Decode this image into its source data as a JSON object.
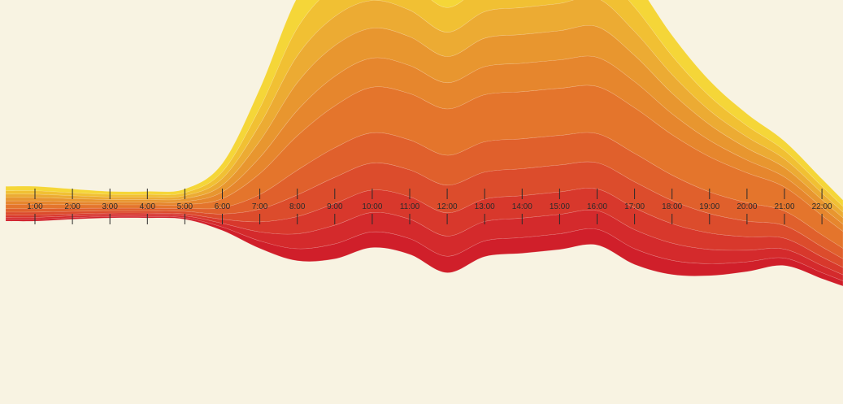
{
  "chart_data": {
    "type": "area",
    "layout": "streamgraph",
    "background": "#f8f3e2",
    "x": [
      "1:00",
      "2:00",
      "3:00",
      "4:00",
      "5:00",
      "6:00",
      "7:00",
      "8:00",
      "9:00",
      "10:00",
      "11:00",
      "12:00",
      "13:00",
      "14:00",
      "15:00",
      "16:00",
      "17:00",
      "18:00",
      "19:00",
      "20:00",
      "21:00",
      "22:00"
    ],
    "offset_above_center": [
      0.02,
      0.02,
      0.02,
      0.02,
      0.02,
      0.11,
      0.62,
      1.45,
      2.15,
      2.6,
      2.42,
      2.01,
      2.38,
      2.46,
      2.55,
      2.6,
      2.05,
      1.4,
      0.88,
      0.52,
      0.22,
      -0.48
    ],
    "center_layer_index": 5,
    "series": [
      {
        "values": [
          0.12,
          0.1,
          0.08,
          0.08,
          0.1,
          0.22,
          0.52,
          0.82,
          0.92,
          0.85,
          0.8,
          0.72,
          0.8,
          0.8,
          0.82,
          0.88,
          0.72,
          0.55,
          0.42,
          0.32,
          0.25,
          0.2
        ],
        "color": "#f5d638"
      },
      {
        "values": [
          0.09,
          0.08,
          0.07,
          0.07,
          0.08,
          0.18,
          0.44,
          0.74,
          0.8,
          0.75,
          0.72,
          0.66,
          0.72,
          0.72,
          0.74,
          0.76,
          0.65,
          0.5,
          0.38,
          0.3,
          0.23,
          0.18
        ],
        "color": "#f1c033"
      },
      {
        "values": [
          0.09,
          0.08,
          0.07,
          0.07,
          0.08,
          0.18,
          0.44,
          0.72,
          0.78,
          0.74,
          0.71,
          0.65,
          0.71,
          0.72,
          0.73,
          0.76,
          0.64,
          0.5,
          0.38,
          0.3,
          0.23,
          0.18
        ],
        "color": "#ecab33"
      },
      {
        "values": [
          0.09,
          0.08,
          0.07,
          0.07,
          0.08,
          0.18,
          0.44,
          0.74,
          0.82,
          0.8,
          0.77,
          0.7,
          0.76,
          0.77,
          0.78,
          0.82,
          0.7,
          0.55,
          0.42,
          0.32,
          0.25,
          0.2
        ],
        "color": "#e8962f"
      },
      {
        "values": [
          0.09,
          0.08,
          0.07,
          0.07,
          0.08,
          0.18,
          0.43,
          0.68,
          0.79,
          0.78,
          0.75,
          0.7,
          0.75,
          0.76,
          0.76,
          0.78,
          0.7,
          0.56,
          0.44,
          0.34,
          0.27,
          0.22
        ],
        "color": "#e6862d"
      },
      {
        "values": [
          0.12,
          0.1,
          0.09,
          0.09,
          0.1,
          0.24,
          0.56,
          0.92,
          1.12,
          1.22,
          1.24,
          1.24,
          1.26,
          1.26,
          1.26,
          1.26,
          1.22,
          1.08,
          0.94,
          0.8,
          0.64,
          0.52
        ],
        "color": "#e4752c"
      },
      {
        "values": [
          0.09,
          0.08,
          0.07,
          0.07,
          0.08,
          0.17,
          0.39,
          0.66,
          0.79,
          0.81,
          0.8,
          0.8,
          0.81,
          0.8,
          0.79,
          0.78,
          0.76,
          0.68,
          0.58,
          0.49,
          0.39,
          0.32
        ],
        "color": "#e0602c"
      },
      {
        "values": [
          0.08,
          0.07,
          0.06,
          0.06,
          0.07,
          0.14,
          0.34,
          0.58,
          0.7,
          0.72,
          0.72,
          0.74,
          0.72,
          0.72,
          0.72,
          0.7,
          0.7,
          0.62,
          0.52,
          0.42,
          0.34,
          0.27
        ],
        "color": "#dc4c2c"
      },
      {
        "values": [
          0.06,
          0.05,
          0.05,
          0.05,
          0.05,
          0.11,
          0.27,
          0.46,
          0.58,
          0.6,
          0.6,
          0.62,
          0.6,
          0.6,
          0.6,
          0.58,
          0.58,
          0.52,
          0.44,
          0.36,
          0.29,
          0.23
        ],
        "color": "#d8382c"
      },
      {
        "values": [
          0.05,
          0.05,
          0.04,
          0.04,
          0.05,
          0.1,
          0.24,
          0.4,
          0.5,
          0.52,
          0.52,
          0.54,
          0.52,
          0.52,
          0.52,
          0.5,
          0.51,
          0.46,
          0.38,
          0.31,
          0.24,
          0.19
        ],
        "color": "#d42a2c"
      },
      {
        "values": [
          0.05,
          0.04,
          0.04,
          0.04,
          0.04,
          0.09,
          0.2,
          0.32,
          0.4,
          0.42,
          0.42,
          0.44,
          0.42,
          0.42,
          0.42,
          0.42,
          0.42,
          0.38,
          0.32,
          0.26,
          0.2,
          0.16
        ],
        "color": "#d01f2a"
      }
    ]
  }
}
